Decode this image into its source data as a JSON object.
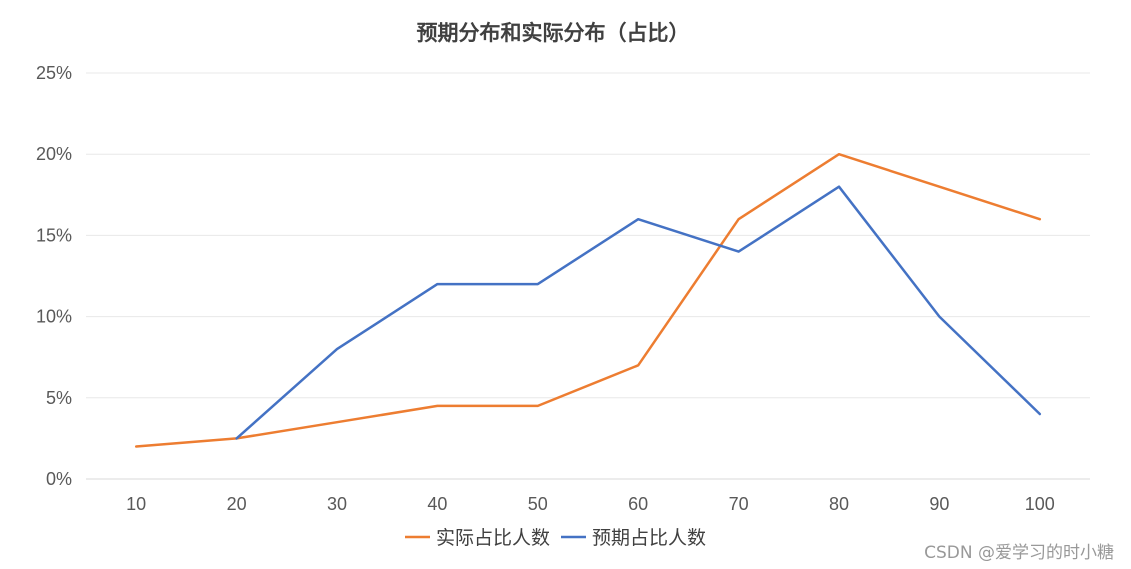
{
  "watermark": "CSDN @爱学习的时小糖",
  "chart_data": {
    "type": "line",
    "title": "预期分布和实际分布（占比）",
    "xlabel": "",
    "ylabel": "",
    "categories": [
      "10",
      "20",
      "30",
      "40",
      "50",
      "60",
      "70",
      "80",
      "90",
      "100"
    ],
    "ylim": [
      0,
      25
    ],
    "yticks": [
      "0%",
      "5%",
      "10%",
      "15%",
      "20%",
      "25%"
    ],
    "grid": true,
    "legend_position": "bottom",
    "series": [
      {
        "name": "实际占比人数",
        "color": "#ED7D31",
        "values": [
          2,
          2.5,
          3.5,
          4.5,
          4.5,
          7,
          16,
          20,
          18,
          16
        ]
      },
      {
        "name": "预期占比人数",
        "color": "#4472C4",
        "values": [
          null,
          2.5,
          8,
          12,
          12,
          16,
          14,
          18,
          10,
          4
        ]
      }
    ]
  }
}
